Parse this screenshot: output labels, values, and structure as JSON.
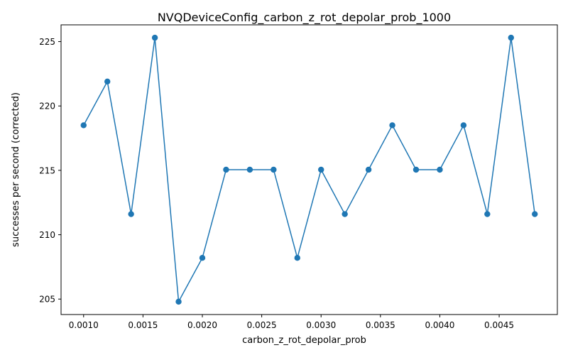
{
  "chart_data": {
    "type": "line",
    "title": "NVQDeviceConfig_carbon_z_rot_depolar_prob_1000",
    "xlabel": "carbon_z_rot_depolar_prob",
    "ylabel": "successes per second (corrected)",
    "xlim": [
      0.00081,
      0.00499
    ],
    "ylim": [
      203.8,
      226.3
    ],
    "xticks": [
      0.001,
      0.0015,
      0.002,
      0.0025,
      0.003,
      0.0035,
      0.004,
      0.0045
    ],
    "xtick_labels": [
      "0.0010",
      "0.0015",
      "0.0020",
      "0.0025",
      "0.0030",
      "0.0035",
      "0.0040",
      "0.0045"
    ],
    "yticks": [
      205,
      210,
      215,
      220,
      225
    ],
    "ytick_labels": [
      "205",
      "210",
      "215",
      "220",
      "225"
    ],
    "grid": false,
    "series": [
      {
        "color": "#1f77b4",
        "marker": "circle",
        "x": [
          0.001,
          0.0012,
          0.0014,
          0.0016,
          0.0018,
          0.002,
          0.0022,
          0.0024,
          0.0026,
          0.0028,
          0.003,
          0.0032,
          0.0034,
          0.0036,
          0.0038,
          0.004,
          0.0042,
          0.0044,
          0.0046,
          0.0048
        ],
        "y": [
          218.5,
          221.9,
          211.6,
          225.3,
          204.8,
          208.2,
          215.05,
          215.05,
          215.05,
          208.2,
          215.05,
          211.6,
          215.05,
          218.5,
          215.05,
          215.05,
          218.5,
          211.6,
          225.3,
          211.6
        ]
      }
    ]
  }
}
